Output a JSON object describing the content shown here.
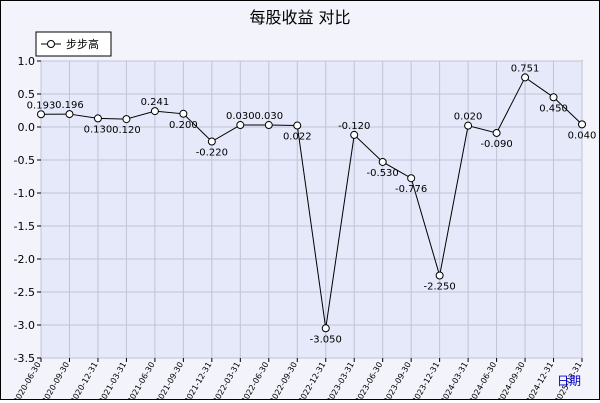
{
  "chart_data": {
    "type": "line",
    "title": "每股收益  对比",
    "xlabel": "日期",
    "ylabel": "",
    "ylim": [
      -3.5,
      1.0
    ],
    "yticks": [
      "1.0",
      "0.5",
      "0.0",
      "-0.5",
      "-1.0",
      "-1.5",
      "-2.0",
      "-2.5",
      "-3.0",
      "-3.5"
    ],
    "grid": true,
    "legend_position": "top-left",
    "x": [
      "2020-06-30",
      "2020-09-30",
      "2020-12-31",
      "2021-03-31",
      "2021-06-30",
      "2021-09-30",
      "2021-12-31",
      "2022-03-31",
      "2022-06-30",
      "2022-09-30",
      "2022-12-31",
      "2023-03-31",
      "2023-06-30",
      "2023-09-30",
      "2023-12-31",
      "2024-03-31",
      "2024-06-30",
      "2024-09-30",
      "2024-12-31",
      "2025-03-31"
    ],
    "series": [
      {
        "name": "步步高",
        "color": "#000000",
        "values": [
          0.193,
          0.196,
          0.13,
          0.12,
          0.241,
          0.2,
          -0.22,
          0.03,
          0.03,
          0.022,
          -3.05,
          -0.12,
          -0.53,
          -0.776,
          -2.25,
          0.02,
          -0.09,
          0.751,
          0.45,
          0.04
        ],
        "labels": [
          "0.193",
          "0.196",
          "0.130",
          "0.120",
          "0.241",
          "0.200",
          "-0.220",
          "0.030",
          "0.030",
          "0.022",
          "-3.050",
          "-0.120",
          "-0.530",
          "-0.776",
          "-2.250",
          "0.020",
          "-0.090",
          "0.751",
          "0.450",
          "0.040"
        ]
      }
    ]
  },
  "colors": {
    "plot_bg": "#e6e9fa",
    "grid": "#c0c4d8",
    "line": "#000000",
    "xlabel": "#0000cc"
  }
}
